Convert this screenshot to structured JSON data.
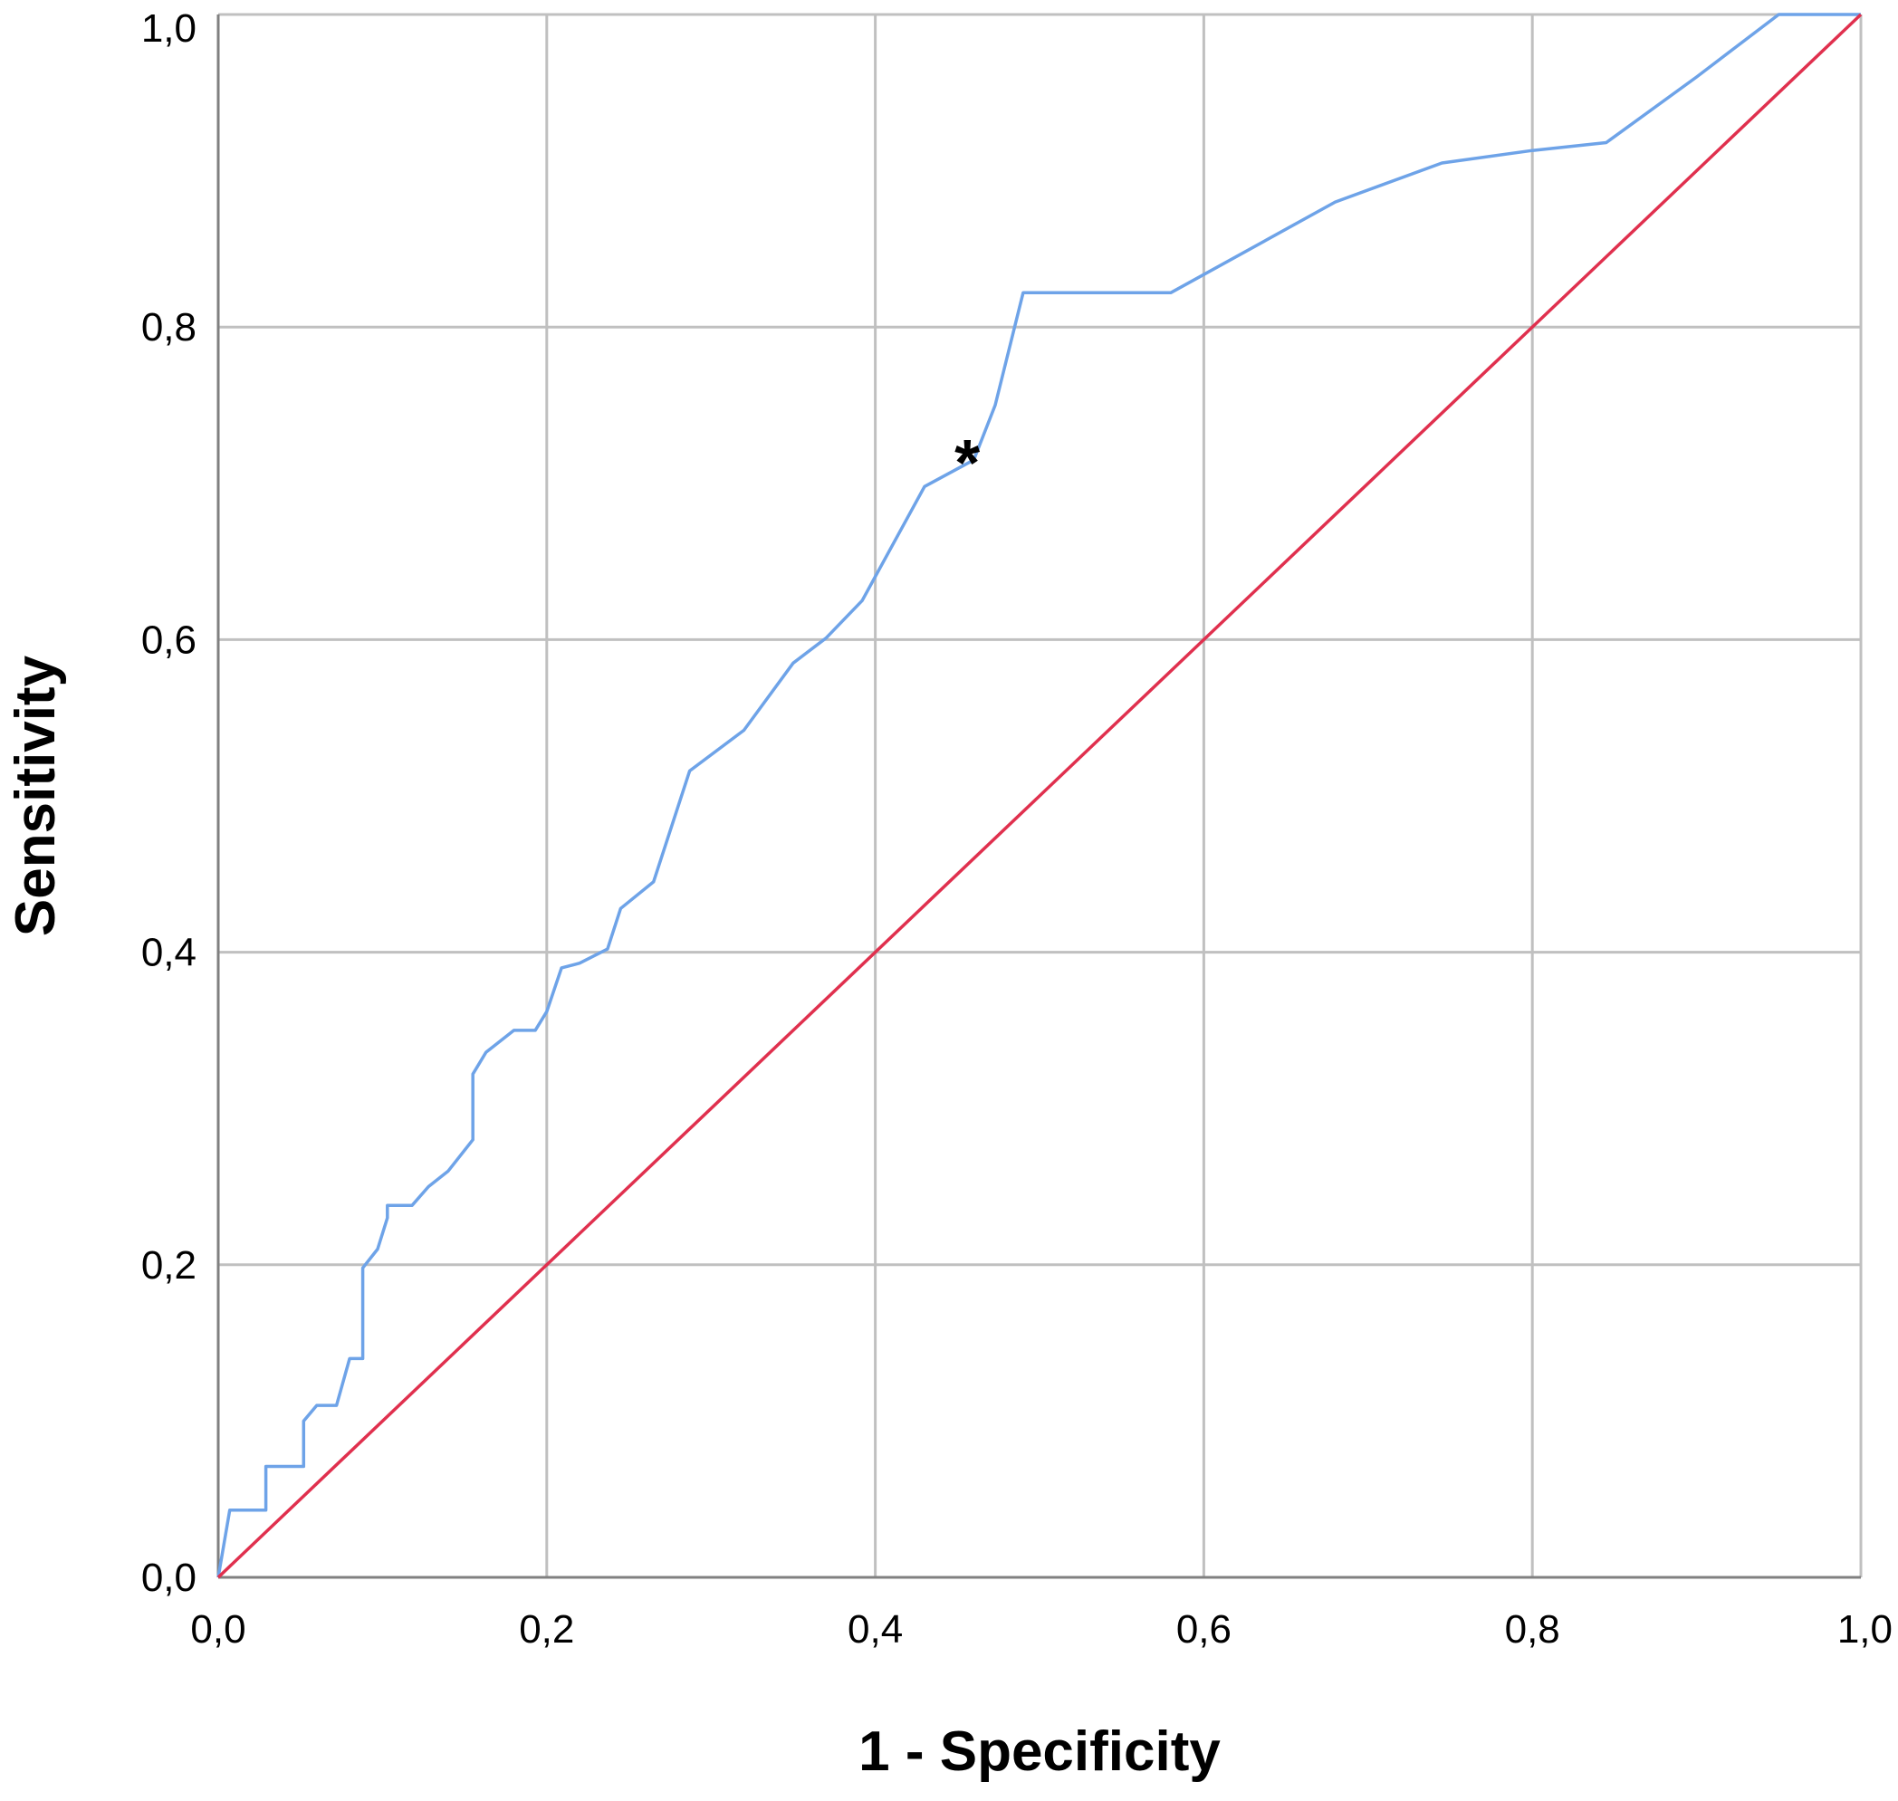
{
  "colors": {
    "roc_curve": "#6ea3e8",
    "reference_line": "#e0304e",
    "gridline": "#c0c0c0",
    "axis": "#808080",
    "background": "#ffffff"
  },
  "chart_data": {
    "type": "line",
    "title": "",
    "xlabel": "1 - Specificity",
    "ylabel": "Sensitivity",
    "xlim": [
      0,
      1
    ],
    "ylim": [
      0,
      1
    ],
    "grid": true,
    "x_ticks": [
      0,
      0.2,
      0.4,
      0.6,
      0.8,
      1.0
    ],
    "y_ticks": [
      0,
      0.2,
      0.4,
      0.6,
      0.8,
      1.0
    ],
    "x_tick_labels": [
      "0,0",
      "0,2",
      "0,4",
      "0,6",
      "0,8",
      "1,0"
    ],
    "y_tick_labels": [
      "0,0",
      "0,2",
      "0,4",
      "0,6",
      "0,8",
      "1,0"
    ],
    "series": [
      {
        "color": "#6ea3e8",
        "x": [
          0.0,
          0.007,
          0.007,
          0.029,
          0.029,
          0.052,
          0.052,
          0.06,
          0.072,
          0.08,
          0.088,
          0.088,
          0.097,
          0.103,
          0.103,
          0.118,
          0.128,
          0.14,
          0.155,
          0.155,
          0.163,
          0.18,
          0.193,
          0.2,
          0.209,
          0.22,
          0.237,
          0.245,
          0.265,
          0.287,
          0.32,
          0.35,
          0.37,
          0.392,
          0.43,
          0.46,
          0.473,
          0.49,
          0.58,
          0.68,
          0.745,
          0.8,
          0.845,
          0.9,
          0.95,
          1.0
        ],
        "y": [
          0.0,
          0.043,
          0.043,
          0.043,
          0.071,
          0.071,
          0.1,
          0.11,
          0.11,
          0.14,
          0.14,
          0.198,
          0.21,
          0.23,
          0.238,
          0.238,
          0.25,
          0.26,
          0.28,
          0.322,
          0.336,
          0.35,
          0.35,
          0.362,
          0.39,
          0.393,
          0.402,
          0.428,
          0.445,
          0.516,
          0.542,
          0.585,
          0.601,
          0.625,
          0.698,
          0.715,
          0.75,
          0.822,
          0.822,
          0.88,
          0.905,
          0.913,
          0.918,
          0.96,
          1.0,
          1.0
        ]
      },
      {
        "color": "#e0304e",
        "x": [
          0,
          1
        ],
        "y": [
          0,
          1
        ]
      }
    ],
    "annotations": [
      {
        "text": "*",
        "x": 0.456,
        "y": 0.715
      }
    ]
  }
}
